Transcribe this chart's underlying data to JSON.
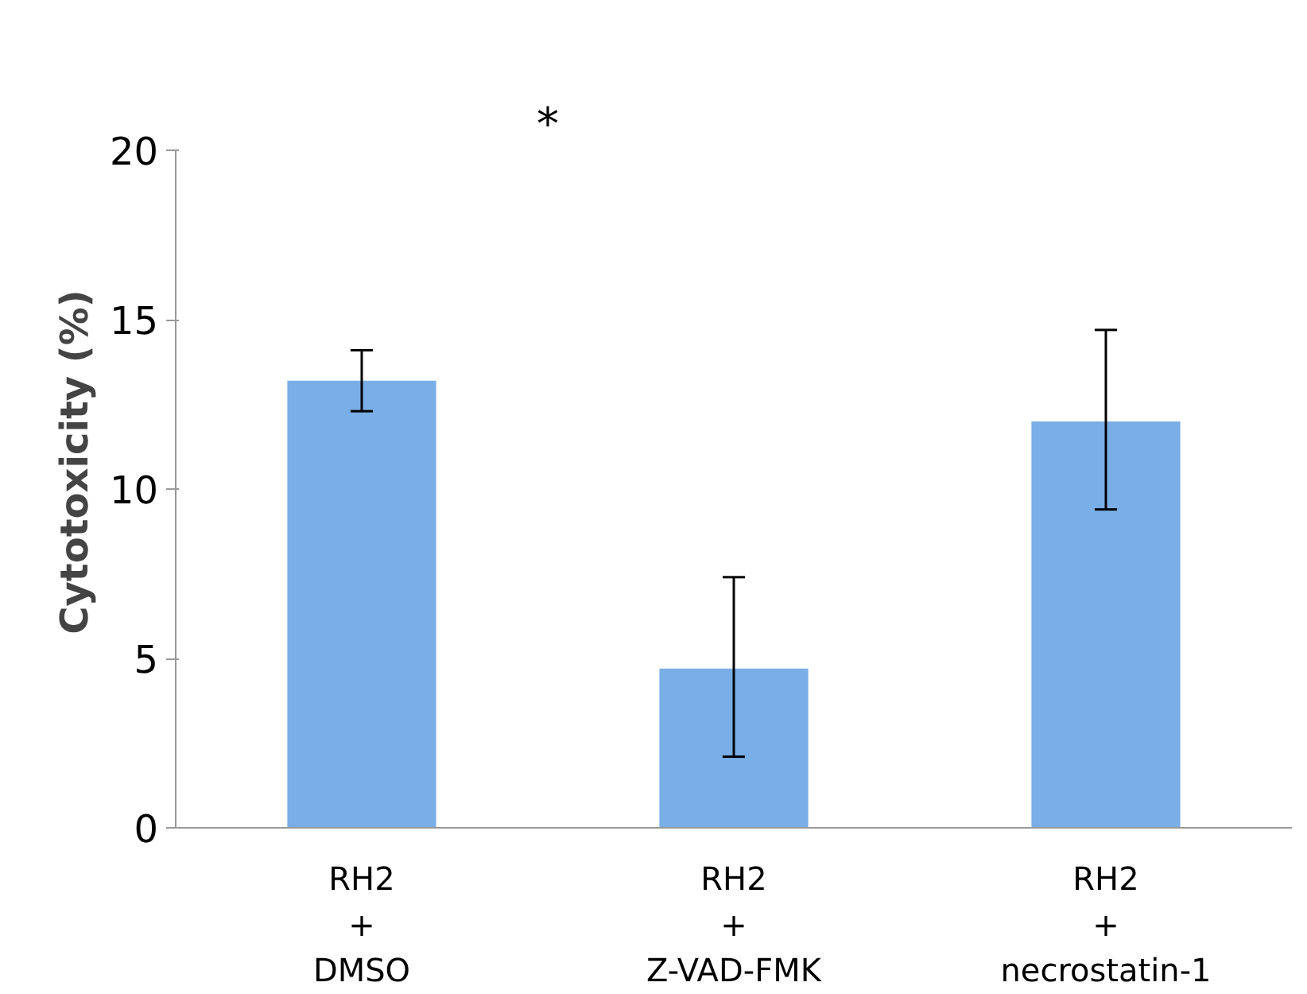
{
  "chart_data": {
    "type": "bar",
    "ylabel": "Cytotoxicity (%)",
    "categories": [
      "RH2\n+\nDMSO",
      "RH2\n+\nZ-VAD-FMK",
      "RH2\n+\nnecrostatin-1"
    ],
    "values": [
      13.2,
      4.7,
      12.0
    ],
    "errors": [
      [
        12.3,
        14.1
      ],
      [
        2.1,
        7.4
      ],
      [
        9.4,
        14.7
      ]
    ],
    "color": "#7aaee6",
    "ylim": [
      0,
      20
    ],
    "yticks": [
      0,
      5,
      10,
      15,
      20
    ],
    "grid": false,
    "annotations": [
      "*"
    ]
  }
}
